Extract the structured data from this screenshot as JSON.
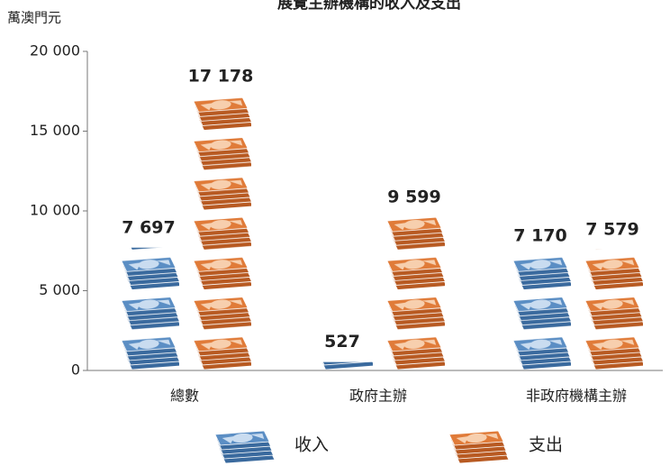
{
  "chart_data": {
    "type": "pictograph-bar",
    "title": "展覽主辦機構的收入及支出",
    "y_axis_label": "萬澳門元",
    "categories": [
      "總數",
      "政府主辦",
      "非政府機構主辦"
    ],
    "series": [
      {
        "name": "收入",
        "color": "#5b8ec4",
        "values": [
          7697,
          527,
          7170
        ],
        "value_labels": [
          "7 697",
          "527",
          "7 170"
        ]
      },
      {
        "name": "支出",
        "color": "#e07b39",
        "values": [
          17178,
          9599,
          7579
        ],
        "value_labels": [
          "17 178",
          "9 599",
          "7 579"
        ]
      }
    ],
    "ylim": [
      0,
      20000
    ],
    "yticks": [
      0,
      {
        "value": 5000,
        "label": "5 000"
      },
      {
        "value": 10000,
        "label": "10 000"
      },
      {
        "value": 15000,
        "label": "15 000"
      },
      {
        "value": 20000,
        "label": "20 000"
      }
    ]
  }
}
